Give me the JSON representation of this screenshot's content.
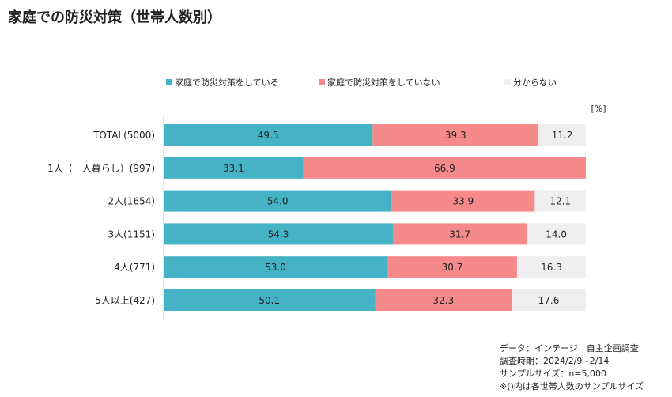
{
  "page": {
    "title": "家庭での防災対策（世帯人数別）"
  },
  "chart_data": {
    "type": "bar",
    "orientation": "horizontal",
    "stacked": true,
    "unit_label": "[%]",
    "xlim": [
      0,
      100
    ],
    "grid": false,
    "legend_position": "top",
    "categories": [
      "TOTAL(5000)",
      "1人（一人暮らし）(997)",
      "2人(1654)",
      "3人(1151)",
      "4人(771)",
      "5人以上(427)"
    ],
    "series": [
      {
        "name": "家庭で防災対策をしている",
        "color": "#45b2c5",
        "values": [
          49.5,
          33.1,
          54.0,
          54.3,
          53.0,
          50.1
        ],
        "labels": [
          "49.5",
          "33.1",
          "54.0",
          "54.3",
          "53.0",
          "50.1"
        ]
      },
      {
        "name": "家庭で防災対策をしていない",
        "color": "#f6898a",
        "values": [
          39.3,
          66.9,
          33.9,
          31.7,
          30.7,
          32.3
        ],
        "labels": [
          "39.3",
          "66.9",
          "33.9",
          "31.7",
          "30.7",
          "32.3"
        ]
      },
      {
        "name": "分からない",
        "color": "#efefef",
        "values": [
          11.2,
          0,
          12.1,
          14.0,
          16.3,
          17.6
        ],
        "labels": [
          "11.2",
          "",
          "12.1",
          "14.0",
          "16.3",
          "17.6"
        ]
      }
    ]
  },
  "source": {
    "line1": "データ：インテージ　自主企画調査",
    "line2": "調査時期：2024/2/9~2/14",
    "line3": "サンプルサイズ：n=5,000",
    "line4": "※()内は各世帯人数のサンプルサイズ"
  }
}
